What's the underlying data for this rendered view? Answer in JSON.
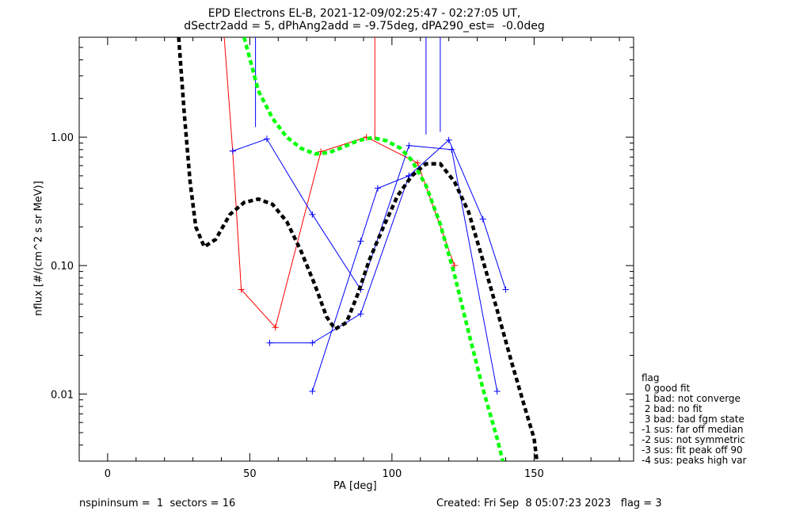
{
  "title_line1": "EPD Electrons EL-B, 2021-12-09/02:25:47 - 02:27:05 UT,",
  "title_line2": "dSectr2add = 5, dPhAng2add = -9.75deg, dPA290_est=  -0.0deg",
  "footer_left": "nspininsum =  1  sectors = 16",
  "footer_right": "Created: Fri Sep  8 05:07:23 2023   flag = 3",
  "flag_legend": {
    "title": "flag",
    "items": [
      " 0 good fit",
      " 1 bad: not converge",
      " 2 bad: no fit",
      " 3 bad: bad fgm state",
      "-1 sus: far off median",
      "-2 sus: not symmetric",
      "-3 sus: fit peak off 90",
      "-4 sus: peaks high var"
    ]
  },
  "chart_data": {
    "type": "line",
    "xlabel": "PA [deg]",
    "ylabel": "nflux [#/(cm^2 s sr MeV)]",
    "xlim": [
      -10,
      185
    ],
    "ylim": [
      0.003,
      6
    ],
    "ylog": true,
    "xticks": [
      0,
      50,
      100,
      150
    ],
    "xtick_labels": [
      "0",
      "50",
      "100",
      "150"
    ],
    "yticks": [
      0.01,
      0.1,
      1.0
    ],
    "ytick_labels": [
      "0.01",
      "0.10",
      "1.00"
    ],
    "colors": {
      "red": "#ff0000",
      "blue": "#0000ff",
      "black": "#000000",
      "green": "#00ff00"
    },
    "series": [
      {
        "color": "#ff0000",
        "style": "line-plus",
        "points": [
          [
            41,
            6
          ],
          [
            44,
            0.78
          ],
          [
            47,
            0.065
          ],
          [
            59,
            0.033
          ],
          [
            75,
            0.77
          ],
          [
            91,
            1.0
          ],
          [
            109,
            0.63
          ],
          [
            122,
            0.1
          ]
        ]
      },
      {
        "color": "#ff0000",
        "style": "line",
        "points": [
          [
            94,
            6
          ],
          [
            94,
            0.95
          ]
        ]
      },
      {
        "color": "#0000ff",
        "style": "line-plus",
        "points": [
          [
            44,
            0.78
          ],
          [
            56,
            0.97
          ],
          [
            72,
            0.25
          ],
          [
            89,
            0.065
          ],
          [
            106,
            0.86
          ],
          [
            121,
            0.8
          ],
          [
            137,
            0.0105
          ]
        ]
      },
      {
        "color": "#0000ff",
        "style": "line-plus",
        "points": [
          [
            57,
            0.025
          ],
          [
            72,
            0.025
          ],
          [
            89,
            0.042
          ],
          [
            106,
            0.5
          ],
          [
            120,
            0.95
          ],
          [
            132,
            0.23
          ],
          [
            140,
            0.065
          ]
        ]
      },
      {
        "color": "#0000ff",
        "style": "line-plus",
        "points": [
          [
            72,
            0.0105
          ],
          [
            89,
            0.155
          ],
          [
            95,
            0.4
          ],
          [
            106,
            0.5
          ]
        ]
      },
      {
        "color": "#0000ff",
        "style": "line",
        "points": [
          [
            52,
            6
          ],
          [
            52,
            1.2
          ]
        ]
      },
      {
        "color": "#0000ff",
        "style": "line",
        "points": [
          [
            112,
            6
          ],
          [
            112,
            1.05
          ]
        ]
      },
      {
        "color": "#0000ff",
        "style": "line",
        "points": [
          [
            117,
            6
          ],
          [
            117,
            1.1
          ]
        ]
      },
      {
        "color": "#000000",
        "style": "dashed-thick",
        "points": [
          [
            25,
            6
          ],
          [
            27,
            1.5
          ],
          [
            29,
            0.45
          ],
          [
            31,
            0.2
          ],
          [
            34,
            0.14
          ],
          [
            38,
            0.16
          ],
          [
            43,
            0.25
          ],
          [
            48,
            0.31
          ],
          [
            53,
            0.33
          ],
          [
            58,
            0.3
          ],
          [
            63,
            0.22
          ],
          [
            68,
            0.13
          ],
          [
            73,
            0.07
          ],
          [
            77,
            0.04
          ],
          [
            80,
            0.032
          ],
          [
            84,
            0.036
          ],
          [
            88,
            0.06
          ],
          [
            92,
            0.11
          ],
          [
            97,
            0.2
          ],
          [
            102,
            0.35
          ],
          [
            107,
            0.5
          ],
          [
            112,
            0.62
          ],
          [
            117,
            0.62
          ],
          [
            122,
            0.45
          ],
          [
            127,
            0.26
          ],
          [
            132,
            0.11
          ],
          [
            137,
            0.045
          ],
          [
            142,
            0.018
          ],
          [
            147,
            0.0075
          ],
          [
            150,
            0.0045
          ],
          [
            151,
            0.003
          ]
        ]
      },
      {
        "color": "#00ff00",
        "style": "dashed-thick",
        "points": [
          [
            48,
            6
          ],
          [
            53,
            2.3
          ],
          [
            58,
            1.4
          ],
          [
            63,
            1.0
          ],
          [
            68,
            0.82
          ],
          [
            73,
            0.74
          ],
          [
            78,
            0.76
          ],
          [
            83,
            0.84
          ],
          [
            88,
            0.94
          ],
          [
            93,
            0.99
          ],
          [
            98,
            0.94
          ],
          [
            103,
            0.82
          ],
          [
            107,
            0.66
          ],
          [
            112,
            0.42
          ],
          [
            117,
            0.21
          ],
          [
            122,
            0.085
          ],
          [
            127,
            0.03
          ],
          [
            132,
            0.011
          ],
          [
            137,
            0.0045
          ],
          [
            139,
            0.003
          ]
        ]
      }
    ]
  }
}
